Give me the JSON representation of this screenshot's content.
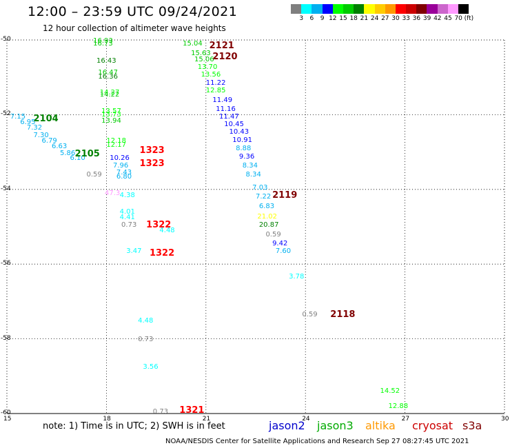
{
  "title": "12:00 – 23:59 UTC 09/24/2021",
  "subtitle": "12 hour collection of altimeter wave heights",
  "colorbar": {
    "colors": [
      "#7f7f7f",
      "#00ffff",
      "#00b0f0",
      "#0000ff",
      "#00ff00",
      "#00cc00",
      "#008000",
      "#ffff00",
      "#ffcc00",
      "#ff9900",
      "#ff0000",
      "#cc0000",
      "#800000",
      "#990099",
      "#cc66cc",
      "#ff99ff",
      "#000000"
    ],
    "labels": [
      "3",
      "6",
      "9",
      "12",
      "15",
      "18",
      "21",
      "24",
      "27",
      "30",
      "33",
      "36",
      "39",
      "42",
      "45",
      "70",
      "(ft)"
    ]
  },
  "x_ticks": [
    "15",
    "18",
    "21",
    "24",
    "27",
    "30"
  ],
  "y_ticks": [
    "-50",
    "-52",
    "-54",
    "-56",
    "-58",
    "-60"
  ],
  "observations": [
    {
      "t": "16.93",
      "lon": 17.6,
      "lat": -50.02,
      "c": "#00cc00"
    },
    {
      "t": "16.73",
      "lon": 17.6,
      "lat": -50.1,
      "c": "#00cc00"
    },
    {
      "t": "16.43",
      "lon": 17.7,
      "lat": -50.55,
      "c": "#008000"
    },
    {
      "t": "16.47",
      "lon": 17.75,
      "lat": -50.87,
      "c": "#00cc00"
    },
    {
      "t": "16.36",
      "lon": 17.75,
      "lat": -50.97,
      "c": "#008000"
    },
    {
      "t": "14.27",
      "lon": 17.8,
      "lat": -51.4,
      "c": "#00ff00"
    },
    {
      "t": "14.22",
      "lon": 17.8,
      "lat": -51.45,
      "c": "#00cc00"
    },
    {
      "t": "13.57",
      "lon": 17.85,
      "lat": -51.9,
      "c": "#00ff00"
    },
    {
      "t": "13.73",
      "lon": 17.85,
      "lat": -52.0,
      "c": "#00ff00"
    },
    {
      "t": "13.94",
      "lon": 17.85,
      "lat": -52.15,
      "c": "#00cc00"
    },
    {
      "t": "12.18",
      "lon": 18.0,
      "lat": -52.7,
      "c": "#00ff00"
    },
    {
      "t": "12.17",
      "lon": 18.0,
      "lat": -52.8,
      "c": "#00ff00"
    },
    {
      "t": "10.26",
      "lon": 18.1,
      "lat": -53.15,
      "c": "#0000ff"
    },
    {
      "t": "7.96",
      "lon": 18.2,
      "lat": -53.35,
      "c": "#00b0f0"
    },
    {
      "t": "7.43",
      "lon": 18.3,
      "lat": -53.55,
      "c": "#00b0f0"
    },
    {
      "t": "6.80",
      "lon": 18.3,
      "lat": -53.65,
      "c": "#00b0f0"
    },
    {
      "t": "47.3",
      "lon": 17.95,
      "lat": -54.1,
      "c": "#ff99ff"
    },
    {
      "t": "4.38",
      "lon": 18.4,
      "lat": -54.15,
      "c": "#00ffff"
    },
    {
      "t": "4.01",
      "lon": 18.4,
      "lat": -54.6,
      "c": "#00ffff"
    },
    {
      "t": "4.41",
      "lon": 18.4,
      "lat": -54.75,
      "c": "#00ffff"
    },
    {
      "t": "0.73",
      "lon": 18.45,
      "lat": -54.95,
      "c": "#7f7f7f"
    },
    {
      "t": "4.48",
      "lon": 19.6,
      "lat": -55.1,
      "c": "#00ffff"
    },
    {
      "t": "3.47",
      "lon": 18.6,
      "lat": -55.65,
      "c": "#00ffff"
    },
    {
      "t": "0.59",
      "lon": 17.4,
      "lat": -53.6,
      "c": "#7f7f7f"
    },
    {
      "t": "7.15",
      "lon": 15.1,
      "lat": -52.05,
      "c": "#00b0f0"
    },
    {
      "t": "6.95",
      "lon": 15.4,
      "lat": -52.2,
      "c": "#00b0f0"
    },
    {
      "t": "7.32",
      "lon": 15.6,
      "lat": -52.35,
      "c": "#00b0f0"
    },
    {
      "t": "7.30",
      "lon": 15.8,
      "lat": -52.55,
      "c": "#00b0f0"
    },
    {
      "t": "6.79",
      "lon": 16.05,
      "lat": -52.7,
      "c": "#00b0f0"
    },
    {
      "t": "6.63",
      "lon": 16.35,
      "lat": -52.85,
      "c": "#00b0f0"
    },
    {
      "t": "5.86",
      "lon": 16.6,
      "lat": -53.02,
      "c": "#00b0f0"
    },
    {
      "t": "6.10",
      "lon": 16.9,
      "lat": -53.15,
      "c": "#00b0f0"
    },
    {
      "t": "15.04",
      "lon": 20.3,
      "lat": -50.1,
      "c": "#00cc00"
    },
    {
      "t": "15.63",
      "lon": 20.55,
      "lat": -50.35,
      "c": "#00cc00"
    },
    {
      "t": "15.06",
      "lon": 20.65,
      "lat": -50.52,
      "c": "#00cc00"
    },
    {
      "t": "13.70",
      "lon": 20.75,
      "lat": -50.72,
      "c": "#00ff00"
    },
    {
      "t": "13.56",
      "lon": 20.85,
      "lat": -50.92,
      "c": "#00ff00"
    },
    {
      "t": "11.22",
      "lon": 21.0,
      "lat": -51.15,
      "c": "#0000ff"
    },
    {
      "t": "12.85",
      "lon": 21.0,
      "lat": -51.35,
      "c": "#00ff00"
    },
    {
      "t": "11.49",
      "lon": 21.2,
      "lat": -51.6,
      "c": "#0000ff"
    },
    {
      "t": "11.16",
      "lon": 21.3,
      "lat": -51.85,
      "c": "#0000ff"
    },
    {
      "t": "11.47",
      "lon": 21.4,
      "lat": -52.05,
      "c": "#0000ff"
    },
    {
      "t": "10.45",
      "lon": 21.55,
      "lat": -52.25,
      "c": "#0000ff"
    },
    {
      "t": "10.43",
      "lon": 21.7,
      "lat": -52.45,
      "c": "#0000ff"
    },
    {
      "t": "10.91",
      "lon": 21.8,
      "lat": -52.68,
      "c": "#0000ff"
    },
    {
      "t": "8.88",
      "lon": 21.9,
      "lat": -52.9,
      "c": "#00b0f0"
    },
    {
      "t": "9.36",
      "lon": 22.0,
      "lat": -53.12,
      "c": "#0000ff"
    },
    {
      "t": "8.34",
      "lon": 22.1,
      "lat": -53.35,
      "c": "#00b0f0"
    },
    {
      "t": "8.34",
      "lon": 22.2,
      "lat": -53.6,
      "c": "#00b0f0"
    },
    {
      "t": "7.03",
      "lon": 22.4,
      "lat": -53.95,
      "c": "#00b0f0"
    },
    {
      "t": "7.22",
      "lon": 22.5,
      "lat": -54.18,
      "c": "#00b0f0"
    },
    {
      "t": "6.83",
      "lon": 22.6,
      "lat": -54.45,
      "c": "#00b0f0"
    },
    {
      "t": "21.02",
      "lon": 22.55,
      "lat": -54.72,
      "c": "#ffff00"
    },
    {
      "t": "20.87",
      "lon": 22.6,
      "lat": -54.95,
      "c": "#008000"
    },
    {
      "t": "0.59",
      "lon": 22.8,
      "lat": -55.2,
      "c": "#7f7f7f"
    },
    {
      "t": "9.42",
      "lon": 23.0,
      "lat": -55.45,
      "c": "#0000ff"
    },
    {
      "t": "7.60",
      "lon": 23.1,
      "lat": -55.65,
      "c": "#00b0f0"
    },
    {
      "t": "3.78",
      "lon": 23.5,
      "lat": -56.32,
      "c": "#00ffff"
    },
    {
      "t": "0.59",
      "lon": 23.9,
      "lat": -57.35,
      "c": "#7f7f7f"
    },
    {
      "t": "4.48",
      "lon": 18.95,
      "lat": -57.5,
      "c": "#00ffff"
    },
    {
      "t": "0.73",
      "lon": 18.95,
      "lat": -58.0,
      "c": "#7f7f7f"
    },
    {
      "t": "3.56",
      "lon": 19.1,
      "lat": -58.75,
      "c": "#00ffff"
    },
    {
      "t": "0.73",
      "lon": 19.4,
      "lat": -59.95,
      "c": "#7f7f7f"
    },
    {
      "t": "14.52",
      "lon": 26.25,
      "lat": -59.4,
      "c": "#00ff00"
    },
    {
      "t": "12.88",
      "lon": 26.5,
      "lat": -59.8,
      "c": "#00ff00"
    }
  ],
  "pass_labels": [
    {
      "t": "2121",
      "lon": 21.1,
      "lat": -50.15,
      "c": "#800000"
    },
    {
      "t": "2120",
      "lon": 21.2,
      "lat": -50.45,
      "c": "#800000"
    },
    {
      "t": "2104",
      "lon": 15.8,
      "lat": -52.1,
      "c": "#008000"
    },
    {
      "t": "2105",
      "lon": 17.05,
      "lat": -53.05,
      "c": "#008000"
    },
    {
      "t": "1323",
      "lon": 19.0,
      "lat": -52.95,
      "c": "#ff0000"
    },
    {
      "t": "1323",
      "lon": 19.0,
      "lat": -53.3,
      "c": "#ff0000"
    },
    {
      "t": "2119",
      "lon": 23.0,
      "lat": -54.15,
      "c": "#800000"
    },
    {
      "t": "1322",
      "lon": 19.2,
      "lat": -54.95,
      "c": "#ff0000"
    },
    {
      "t": "1322",
      "lon": 19.3,
      "lat": -55.7,
      "c": "#ff0000"
    },
    {
      "t": "2118",
      "lon": 24.75,
      "lat": -57.35,
      "c": "#800000"
    },
    {
      "t": "1321",
      "lon": 20.2,
      "lat": -59.9,
      "c": "#ff0000"
    }
  ],
  "note": "note:  1) Time is in UTC;  2) SWH is in feet",
  "legend": [
    {
      "name": "jason2",
      "color": "#0000cc"
    },
    {
      "name": "jason3",
      "color": "#00aa00"
    },
    {
      "name": "altika",
      "color": "#ff9900"
    },
    {
      "name": "cryosat",
      "color": "#cc0000"
    },
    {
      "name": "s3a",
      "color": "#800000"
    }
  ],
  "footer": "NOAA/NESDIS Center for Satellite Applications and Research    Sep 27 08:27:45 UTC 2021"
}
